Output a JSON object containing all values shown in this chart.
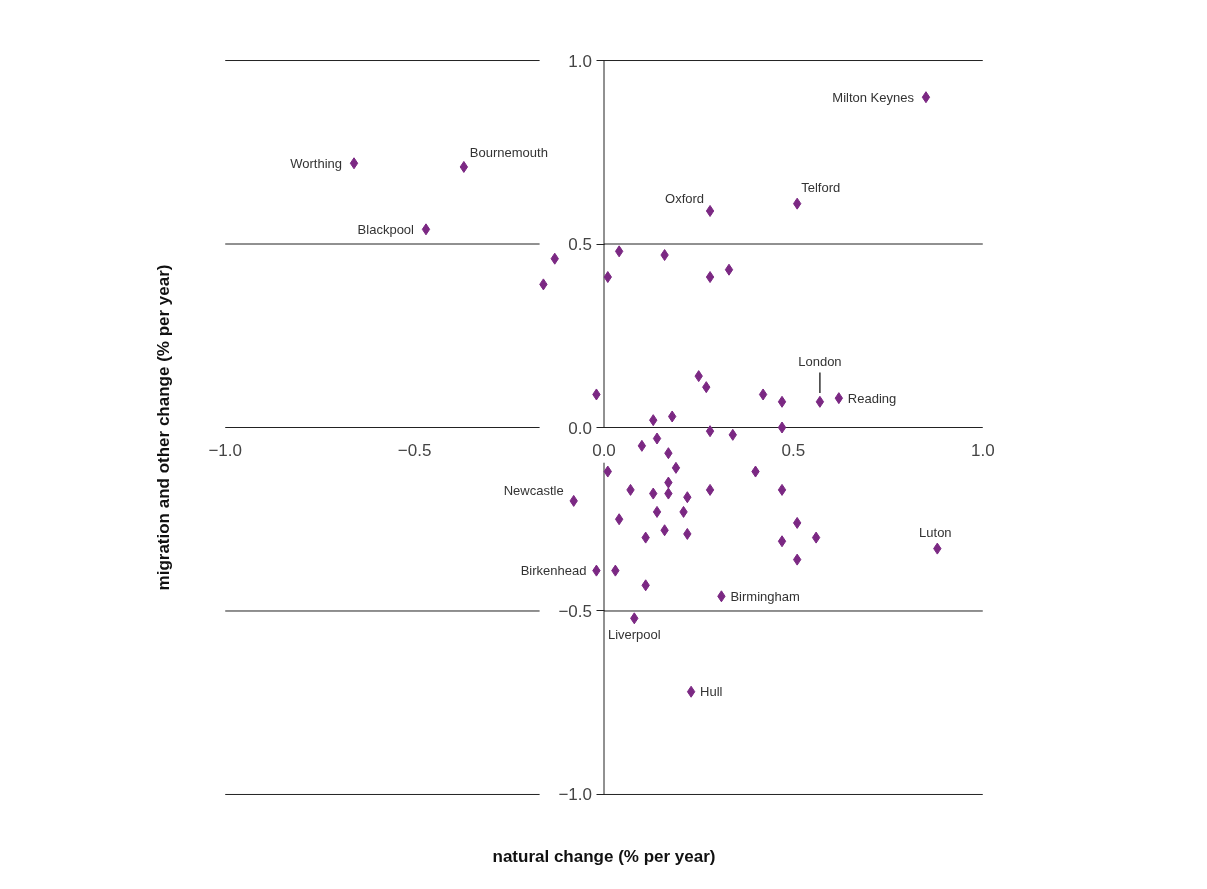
{
  "chart_data": {
    "type": "scatter",
    "xlabel": "natural change (% per year)",
    "ylabel": "migration and other change (% per year)",
    "xlim": [
      -1,
      1
    ],
    "ylim": [
      -1,
      1
    ],
    "xticks": [
      {
        "value": -1,
        "label": "−1.0"
      },
      {
        "value": -0.5,
        "label": "−0.5"
      },
      {
        "value": 0,
        "label": "0.0"
      },
      {
        "value": 0.5,
        "label": "0.5"
      },
      {
        "value": 1,
        "label": "1.0"
      }
    ],
    "yticks": [
      {
        "value": -1,
        "label": "−1.0"
      },
      {
        "value": -0.5,
        "label": "−0.5"
      },
      {
        "value": 0,
        "label": "0.0"
      },
      {
        "value": 0.5,
        "label": "0.5"
      },
      {
        "value": 1,
        "label": "1.0"
      }
    ],
    "grid": "y",
    "marker": "diamond",
    "series": [
      {
        "color": "#7b2883",
        "x": [
          0.85,
          -0.66,
          -0.37,
          0.51,
          0.28,
          -0.47,
          -0.13,
          -0.16,
          0.04,
          0.16,
          0.01,
          0.28,
          0.33,
          0.25,
          0.27,
          -0.02,
          0.42,
          0.47,
          0.57,
          0.62,
          0.13,
          0.18,
          0.47,
          0.28,
          0.34,
          0.1,
          0.14,
          0.17,
          0.19,
          0.01,
          0.4,
          0.17,
          0.07,
          0.13,
          0.17,
          0.22,
          0.28,
          0.47,
          -0.08,
          0.04,
          0.14,
          0.21,
          0.16,
          0.11,
          0.22,
          0.51,
          0.47,
          0.56,
          0.51,
          0.88,
          -0.02,
          0.03,
          0.11,
          0.31,
          0.08,
          0.23
        ],
        "values": [
          0.9,
          0.72,
          0.71,
          0.61,
          0.59,
          0.54,
          0.46,
          0.39,
          0.48,
          0.47,
          0.41,
          0.41,
          0.43,
          0.14,
          0.11,
          0.09,
          0.09,
          0.07,
          0.07,
          0.08,
          0.02,
          0.03,
          0.0,
          -0.01,
          -0.02,
          -0.05,
          -0.03,
          -0.07,
          -0.11,
          -0.12,
          -0.12,
          -0.15,
          -0.17,
          -0.18,
          -0.18,
          -0.19,
          -0.17,
          -0.17,
          -0.2,
          -0.25,
          -0.23,
          -0.23,
          -0.28,
          -0.3,
          -0.29,
          -0.26,
          -0.31,
          -0.3,
          -0.36,
          -0.33,
          -0.39,
          -0.39,
          -0.43,
          -0.46,
          -0.52,
          -0.72
        ]
      }
    ],
    "annotations": [
      {
        "text": "Milton Keynes",
        "x": 0.85,
        "y": 0.9
      },
      {
        "text": "Worthing",
        "x": -0.66,
        "y": 0.72
      },
      {
        "text": "Bournemouth",
        "x": -0.37,
        "y": 0.71
      },
      {
        "text": "Telford",
        "x": 0.51,
        "y": 0.61
      },
      {
        "text": "Oxford",
        "x": 0.28,
        "y": 0.59
      },
      {
        "text": "Blackpool",
        "x": -0.47,
        "y": 0.54
      },
      {
        "text": "London",
        "x": 0.57,
        "y": 0.07
      },
      {
        "text": "Reading",
        "x": 0.62,
        "y": 0.08
      },
      {
        "text": "Newcastle",
        "x": -0.08,
        "y": -0.2
      },
      {
        "text": "Luton",
        "x": 0.88,
        "y": -0.33
      },
      {
        "text": "Birkenhead",
        "x": -0.02,
        "y": -0.39
      },
      {
        "text": "Birmingham",
        "x": 0.31,
        "y": -0.46
      },
      {
        "text": "Liverpool",
        "x": 0.08,
        "y": -0.52
      },
      {
        "text": "Hull",
        "x": 0.23,
        "y": -0.72
      }
    ]
  }
}
